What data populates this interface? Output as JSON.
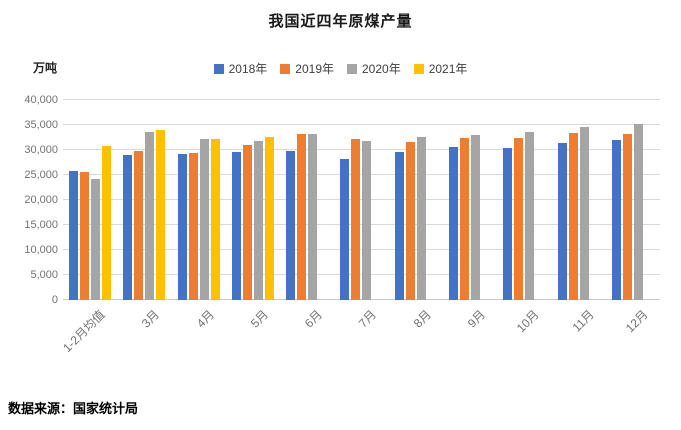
{
  "title": "我国近四年原煤产量",
  "y_unit_label": "万吨",
  "source_note": "数据来源：国家统计局",
  "chart_data": {
    "type": "bar",
    "title": "我国近四年原煤产量",
    "ylabel": "万吨",
    "categories": [
      "1-2月均值",
      "3月",
      "4月",
      "5月",
      "6月",
      "7月",
      "8月",
      "9月",
      "10月",
      "11月",
      "12月"
    ],
    "series": [
      {
        "name": "2018年",
        "color": "#4472C4",
        "values": [
          25800,
          29000,
          29300,
          29700,
          29800,
          28200,
          29600,
          30600,
          30500,
          31500,
          32000
        ]
      },
      {
        "name": "2019年",
        "color": "#ED7D31",
        "values": [
          25600,
          29800,
          29400,
          31100,
          33300,
          32200,
          31600,
          32400,
          32500,
          33400,
          33200
        ]
      },
      {
        "name": "2020年",
        "color": "#A5A5A5",
        "values": [
          24300,
          33700,
          32200,
          31900,
          33300,
          31900,
          32600,
          33000,
          33700,
          34700,
          35200
        ]
      },
      {
        "name": "2021年",
        "color": "#FFC000",
        "values": [
          30900,
          34100,
          32200,
          32600,
          null,
          null,
          null,
          null,
          null,
          null,
          null
        ]
      }
    ],
    "ylim": [
      0,
      40000
    ],
    "ytick_step": 5000,
    "ytick_labels": [
      "0",
      "5,000",
      "10,000",
      "15,000",
      "20,000",
      "25,000",
      "30,000",
      "35,000",
      "40,000"
    ],
    "grid": true,
    "legend_position": "top"
  }
}
